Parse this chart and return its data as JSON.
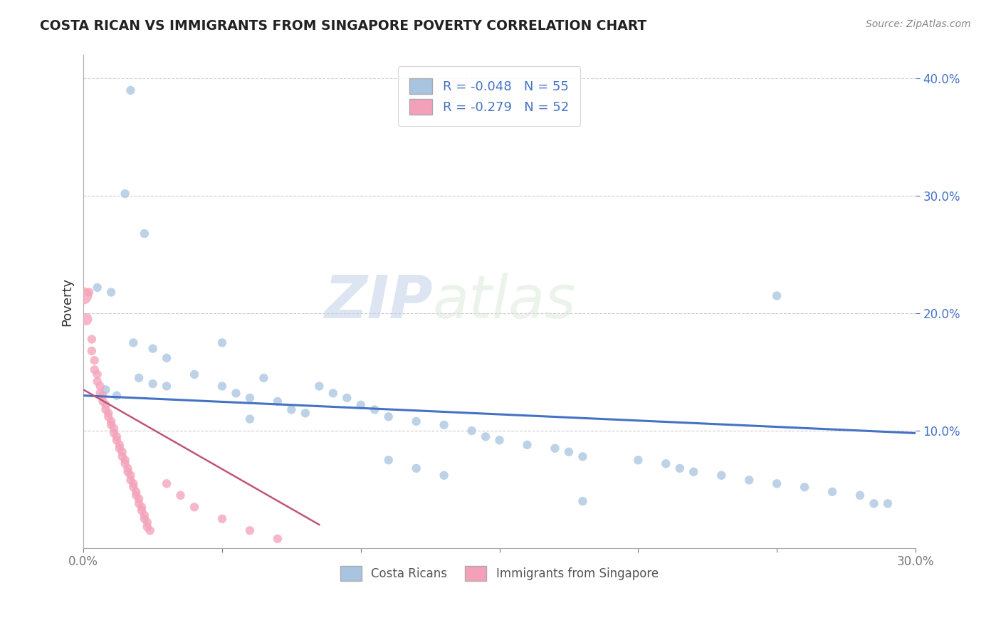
{
  "title": "COSTA RICAN VS IMMIGRANTS FROM SINGAPORE POVERTY CORRELATION CHART",
  "source": "Source: ZipAtlas.com",
  "ylabel": "Poverty",
  "xlim": [
    0.0,
    0.3
  ],
  "ylim": [
    0.0,
    0.42
  ],
  "legend_r_blue": "-0.048",
  "legend_n_blue": "55",
  "legend_r_pink": "-0.279",
  "legend_n_pink": "52",
  "legend_label_blue": "Costa Ricans",
  "legend_label_pink": "Immigrants from Singapore",
  "blue_color": "#a8c4e0",
  "pink_color": "#f4a0b8",
  "line_blue": "#4472c4",
  "line_pink": "#c0547a",
  "watermark_zip": "ZIP",
  "watermark_atlas": "atlas",
  "blue_scatter_x": [
    0.017,
    0.015,
    0.022,
    0.005,
    0.01,
    0.018,
    0.025,
    0.03,
    0.025,
    0.008,
    0.012,
    0.02,
    0.03,
    0.04,
    0.05,
    0.05,
    0.055,
    0.06,
    0.065,
    0.07,
    0.06,
    0.075,
    0.08,
    0.085,
    0.09,
    0.095,
    0.1,
    0.105,
    0.11,
    0.12,
    0.13,
    0.14,
    0.145,
    0.15,
    0.16,
    0.17,
    0.175,
    0.18,
    0.2,
    0.21,
    0.215,
    0.22,
    0.23,
    0.24,
    0.25,
    0.26,
    0.27,
    0.28,
    0.285,
    0.29,
    0.11,
    0.12,
    0.13,
    0.25,
    0.18
  ],
  "blue_scatter_y": [
    0.39,
    0.302,
    0.268,
    0.222,
    0.218,
    0.175,
    0.17,
    0.162,
    0.14,
    0.135,
    0.13,
    0.145,
    0.138,
    0.148,
    0.175,
    0.138,
    0.132,
    0.128,
    0.145,
    0.125,
    0.11,
    0.118,
    0.115,
    0.138,
    0.132,
    0.128,
    0.122,
    0.118,
    0.112,
    0.108,
    0.105,
    0.1,
    0.095,
    0.092,
    0.088,
    0.085,
    0.082,
    0.078,
    0.075,
    0.072,
    0.068,
    0.065,
    0.062,
    0.058,
    0.055,
    0.052,
    0.048,
    0.045,
    0.038,
    0.038,
    0.075,
    0.068,
    0.062,
    0.215,
    0.04
  ],
  "blue_sizes": [
    80,
    80,
    80,
    80,
    80,
    80,
    80,
    80,
    80,
    80,
    80,
    80,
    80,
    80,
    80,
    80,
    80,
    80,
    80,
    80,
    80,
    80,
    80,
    80,
    80,
    80,
    80,
    80,
    80,
    80,
    80,
    80,
    80,
    80,
    80,
    80,
    80,
    80,
    80,
    80,
    80,
    80,
    80,
    80,
    80,
    80,
    80,
    80,
    80,
    80,
    80,
    80,
    80,
    80,
    80
  ],
  "pink_scatter_x": [
    0.002,
    0.003,
    0.003,
    0.004,
    0.004,
    0.005,
    0.005,
    0.006,
    0.006,
    0.007,
    0.007,
    0.008,
    0.008,
    0.009,
    0.009,
    0.01,
    0.01,
    0.011,
    0.011,
    0.012,
    0.012,
    0.013,
    0.013,
    0.014,
    0.014,
    0.015,
    0.015,
    0.016,
    0.016,
    0.017,
    0.017,
    0.018,
    0.018,
    0.019,
    0.019,
    0.02,
    0.02,
    0.021,
    0.021,
    0.022,
    0.022,
    0.023,
    0.023,
    0.024,
    0.03,
    0.035,
    0.04,
    0.05,
    0.06,
    0.07,
    0.0,
    0.001
  ],
  "pink_scatter_y": [
    0.218,
    0.178,
    0.168,
    0.16,
    0.152,
    0.148,
    0.142,
    0.138,
    0.132,
    0.13,
    0.125,
    0.122,
    0.118,
    0.115,
    0.112,
    0.108,
    0.105,
    0.102,
    0.098,
    0.095,
    0.092,
    0.088,
    0.085,
    0.082,
    0.078,
    0.075,
    0.072,
    0.068,
    0.065,
    0.062,
    0.058,
    0.055,
    0.052,
    0.048,
    0.045,
    0.042,
    0.038,
    0.035,
    0.032,
    0.028,
    0.025,
    0.022,
    0.018,
    0.015,
    0.055,
    0.045,
    0.035,
    0.025,
    0.015,
    0.008,
    0.215,
    0.195
  ],
  "pink_sizes": [
    80,
    80,
    80,
    80,
    80,
    80,
    80,
    80,
    80,
    80,
    80,
    80,
    80,
    80,
    80,
    80,
    80,
    80,
    80,
    80,
    80,
    80,
    80,
    80,
    80,
    80,
    80,
    80,
    80,
    80,
    80,
    80,
    80,
    80,
    80,
    80,
    80,
    80,
    80,
    80,
    80,
    80,
    80,
    80,
    80,
    80,
    80,
    80,
    80,
    80,
    300,
    150
  ],
  "blue_trend_x": [
    0.0,
    0.3
  ],
  "blue_trend_y": [
    0.13,
    0.098
  ],
  "pink_trend_x": [
    0.0,
    0.085
  ],
  "pink_trend_y": [
    0.135,
    0.02
  ]
}
